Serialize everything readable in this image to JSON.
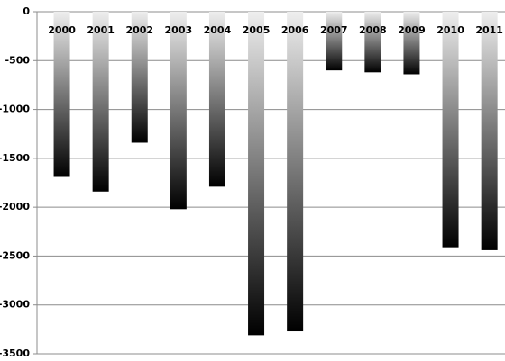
{
  "chart_data": {
    "type": "bar",
    "categories": [
      "2000",
      "2001",
      "2002",
      "2003",
      "2004",
      "2005",
      "2006",
      "2007",
      "2008",
      "2009",
      "2010",
      "2011"
    ],
    "values": [
      -1690,
      -1840,
      -1340,
      -2020,
      -1790,
      -3310,
      -3270,
      -600,
      -620,
      -640,
      -2410,
      -2440
    ],
    "color": {
      "from": "#eeeeee",
      "to": "#000000"
    },
    "ylim": [
      -3500,
      0
    ],
    "yticks": [
      0,
      -500,
      -1000,
      -1500,
      -2000,
      -2500,
      -3000,
      -3500
    ],
    "grid": true
  }
}
